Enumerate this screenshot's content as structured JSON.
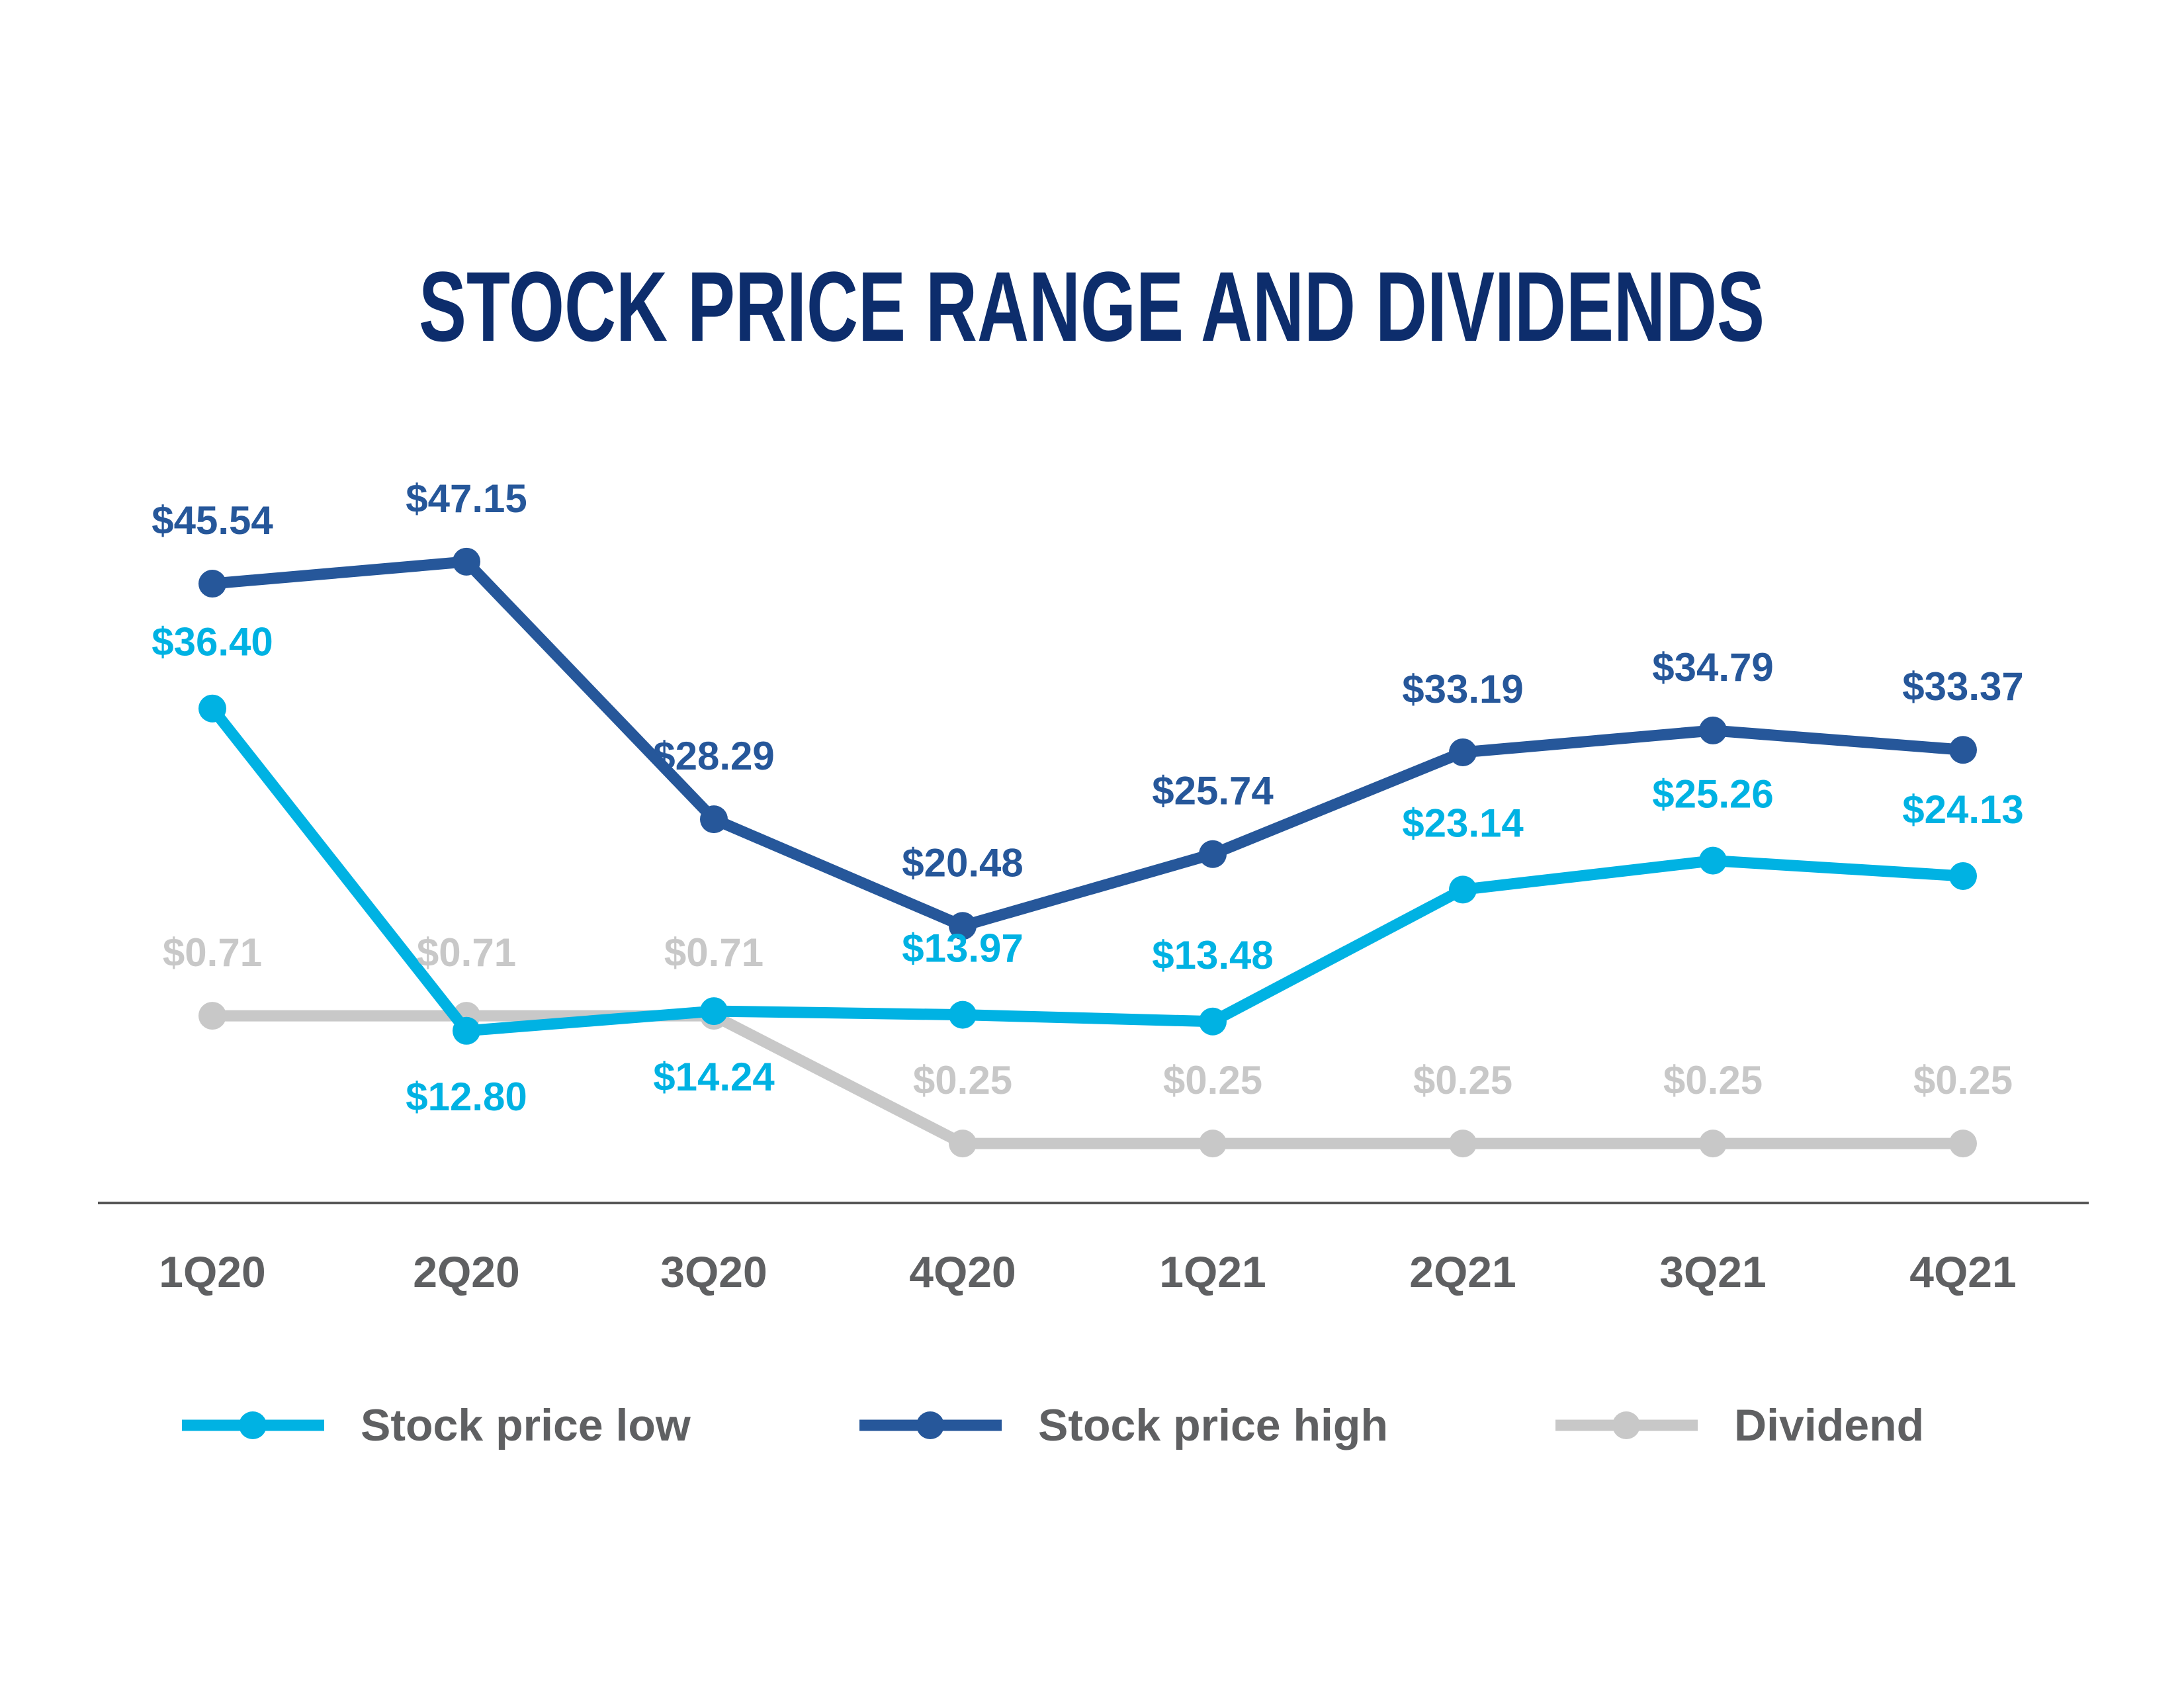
{
  "chart_data": {
    "type": "line",
    "title": "STOCK PRICE RANGE AND DIVIDENDS",
    "categories": [
      "1Q20",
      "2Q20",
      "3Q20",
      "4Q20",
      "1Q21",
      "2Q21",
      "3Q21",
      "4Q21"
    ],
    "series": [
      {
        "name": "Stock price low",
        "color": "#00b2e3",
        "values": [
          36.4,
          12.8,
          14.24,
          13.97,
          13.48,
          23.14,
          25.26,
          24.13
        ],
        "labels": [
          "$36.40",
          "$12.80",
          "$14.24",
          "$13.97",
          "$13.48",
          "$23.14",
          "$25.26",
          "$24.13"
        ]
      },
      {
        "name": "Stock price high",
        "color": "#26579a",
        "values": [
          45.54,
          47.15,
          28.29,
          20.48,
          25.74,
          33.19,
          34.79,
          33.37
        ],
        "labels": [
          "$45.54",
          "$47.15",
          "$28.29",
          "$20.48",
          "$25.74",
          "$33.19",
          "$34.79",
          "$33.37"
        ]
      },
      {
        "name": "Dividend",
        "color": "#c8c8c8",
        "values": [
          0.71,
          0.71,
          0.71,
          0.25,
          0.25,
          0.25,
          0.25,
          0.25
        ],
        "labels": [
          "$0.71",
          "$0.71",
          "$0.71",
          "$0.25",
          "$0.25",
          "$0.25",
          "$0.25",
          "$0.25"
        ]
      }
    ],
    "legend_position": "bottom",
    "grid": false,
    "title_color": "#0d2d6c",
    "axis_label_color": "#5f6062"
  }
}
